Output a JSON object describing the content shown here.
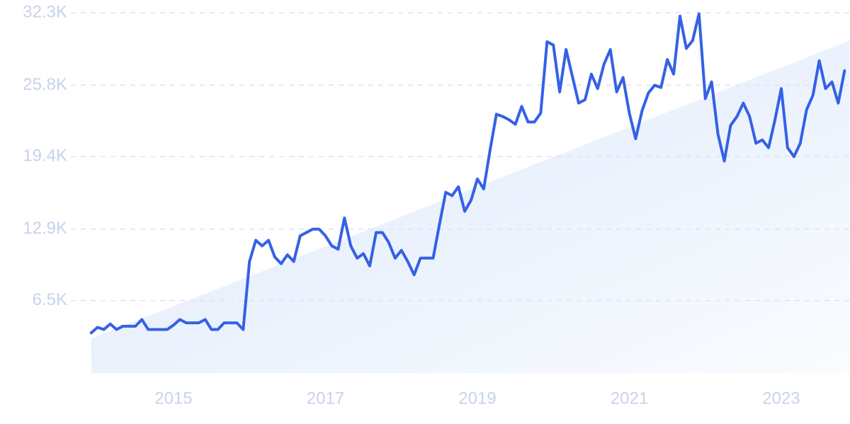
{
  "chart_data": {
    "type": "line",
    "x": [
      2013.917,
      2014,
      2014.083,
      2014.167,
      2014.25,
      2014.333,
      2014.417,
      2014.5,
      2014.583,
      2014.667,
      2014.75,
      2014.833,
      2014.917,
      2015,
      2015.083,
      2015.167,
      2015.25,
      2015.333,
      2015.417,
      2015.5,
      2015.583,
      2015.667,
      2015.75,
      2015.833,
      2015.917,
      2016,
      2016.083,
      2016.167,
      2016.25,
      2016.333,
      2016.417,
      2016.5,
      2016.583,
      2016.667,
      2016.75,
      2016.833,
      2016.917,
      2017,
      2017.083,
      2017.167,
      2017.25,
      2017.333,
      2017.417,
      2017.5,
      2017.583,
      2017.667,
      2017.75,
      2017.833,
      2017.917,
      2018,
      2018.083,
      2018.167,
      2018.25,
      2018.333,
      2018.417,
      2018.5,
      2018.583,
      2018.667,
      2018.75,
      2018.833,
      2018.917,
      2019,
      2019.083,
      2019.167,
      2019.25,
      2019.333,
      2019.417,
      2019.5,
      2019.583,
      2019.667,
      2019.75,
      2019.833,
      2019.917,
      2020,
      2020.083,
      2020.167,
      2020.25,
      2020.333,
      2020.417,
      2020.5,
      2020.583,
      2020.667,
      2020.75,
      2020.833,
      2020.917,
      2021,
      2021.083,
      2021.167,
      2021.25,
      2021.333,
      2021.417,
      2021.5,
      2021.583,
      2021.667,
      2021.75,
      2021.833,
      2021.917,
      2022,
      2022.083,
      2022.167,
      2022.25,
      2022.333,
      2022.417,
      2022.5,
      2022.583,
      2022.667,
      2022.75,
      2022.833,
      2022.917,
      2023,
      2023.083,
      2023.167,
      2023.25,
      2023.333,
      2023.417,
      2023.5,
      2023.583,
      2023.667,
      2023.75,
      2023.833
    ],
    "series": [
      {
        "color": "#3461e6",
        "values": [
          3600,
          4100,
          3900,
          4400,
          3900,
          4200,
          4200,
          4200,
          4800,
          3900,
          3900,
          3900,
          3900,
          4300,
          4800,
          4500,
          4500,
          4500,
          4800,
          3900,
          3900,
          4500,
          4500,
          4500,
          3900,
          10000,
          11900,
          11400,
          11900,
          10400,
          9800,
          10600,
          10000,
          12300,
          12600,
          12900,
          12900,
          12300,
          11400,
          11100,
          13900,
          11400,
          10300,
          10700,
          9600,
          12600,
          12600,
          11700,
          10300,
          11000,
          10000,
          8800,
          10300,
          10300,
          10300,
          13300,
          16200,
          15900,
          16700,
          14500,
          15500,
          17400,
          16500,
          20000,
          23200,
          23000,
          22700,
          22300,
          23900,
          22500,
          22500,
          23300,
          29700,
          29400,
          25200,
          29000,
          26600,
          24200,
          24500,
          26800,
          25500,
          27700,
          29000,
          25200,
          26500,
          23300,
          21000,
          23500,
          25100,
          25800,
          25600,
          28100,
          26800,
          32000,
          29100,
          29800,
          32200,
          24600,
          26100,
          21400,
          19000,
          22200,
          23000,
          24200,
          23000,
          20600,
          20900,
          20200,
          22700,
          25500,
          20200,
          19400,
          20600,
          23600,
          24900,
          28000,
          25500,
          26100,
          24200,
          27100
        ]
      }
    ],
    "trend": {
      "color": "#dce8fb",
      "x": [
        2013.917,
        2023.9
      ],
      "values": [
        3100,
        29800
      ]
    },
    "xlim": [
      2013.9,
      2023.9
    ],
    "xticks": [
      2015,
      2017,
      2019,
      2021,
      2023
    ],
    "ylim": [
      0,
      32300
    ],
    "yticks": [
      {
        "value": 6500,
        "label": "6.5K"
      },
      {
        "value": 12900,
        "label": "12.9K"
      },
      {
        "value": 19400,
        "label": "19.4K"
      },
      {
        "value": 25800,
        "label": "25.8K"
      },
      {
        "value": 32300,
        "label": "32.3K"
      }
    ],
    "grid": true
  }
}
